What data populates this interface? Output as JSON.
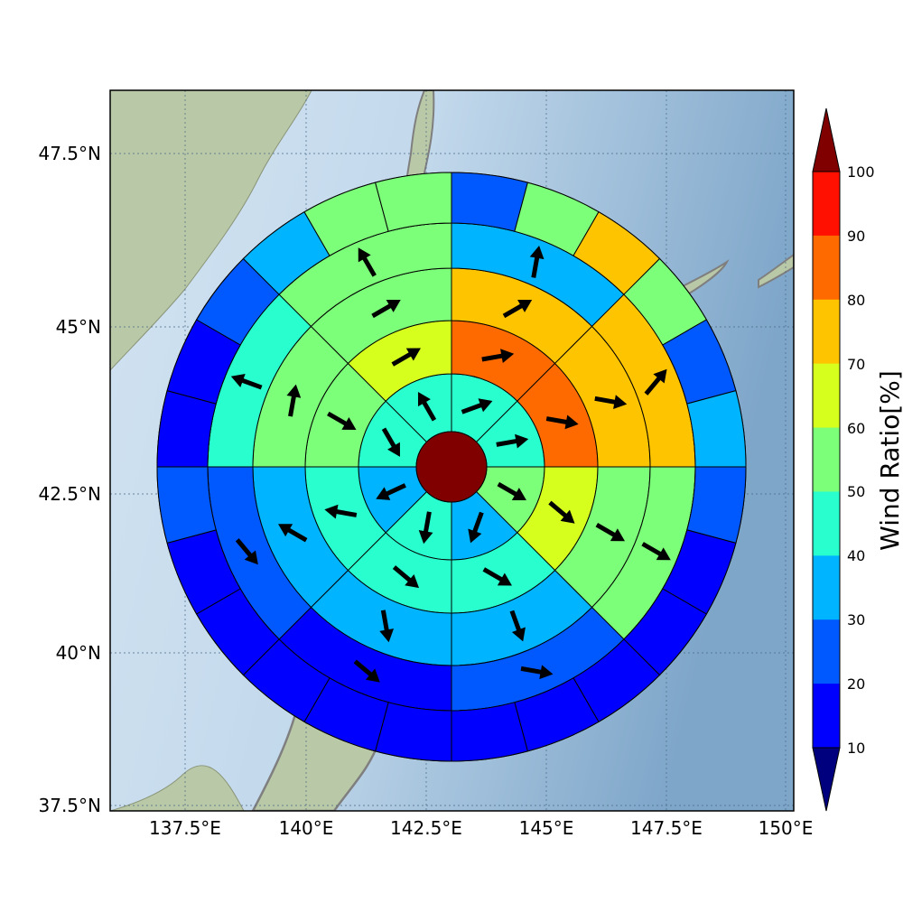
{
  "axes": {
    "lat_ticks": [
      "47.5°N",
      "45°N",
      "42.5°N",
      "40°N",
      "37.5°N"
    ],
    "lon_ticks": [
      "137.5°E",
      "140°E",
      "142.5°E",
      "145°E",
      "147.5°E",
      "150°E"
    ]
  },
  "colorbar": {
    "title": "Wind Ratio[%]",
    "labels": [
      "100",
      "90",
      "80",
      "70",
      "60",
      "50",
      "40",
      "30",
      "20",
      "10"
    ],
    "colors": [
      "#ff1000",
      "#ff6a00",
      "#ffc400",
      "#d6ff1d",
      "#7cff79",
      "#29ffce",
      "#00b4ff",
      "#0058ff",
      "#0000ff"
    ],
    "over_color": "#800000",
    "under_color": "#00007f"
  },
  "chart_data": {
    "type": "polar_sector_map",
    "center": {
      "lon": 143.0,
      "lat": 43.0
    },
    "center_color": "#800000",
    "sector_count": 8,
    "ring_count": 5,
    "ring_colors": [
      [
        "#29ffce",
        "#29ffce",
        "#7cff79",
        "#00b4ff",
        "#29ffce",
        "#00b4ff",
        "#29ffce",
        "#29ffce"
      ],
      [
        "#ff6a00",
        "#ff6a00",
        "#d6ff1d",
        "#29ffce",
        "#29ffce",
        "#29ffce",
        "#7cff79",
        "#d6ff1d"
      ],
      [
        "#ffc400",
        "#ffc400",
        "#7cff79",
        "#00b4ff",
        "#00b4ff",
        "#00b4ff",
        "#7cff79",
        "#7cff79"
      ],
      [
        "#00b4ff",
        "#ffc400",
        "#7cff79",
        "#0058ff",
        "#0000ff",
        "#0058ff",
        "#29ffce",
        "#7cff79"
      ],
      [
        "#0058ff",
        "#7cff79",
        "#0058ff",
        "#0000ff",
        "#0000ff",
        "#0000ff",
        "#0058ff",
        "#7cff79"
      ]
    ],
    "outer_ring_colors": [
      "#0058ff",
      "#7cff79",
      "#ffc400",
      "#7cff79",
      "#0058ff",
      "#00b4ff",
      "#0058ff",
      "#0000ff",
      "#0000ff",
      "#0000ff",
      "#0000ff",
      "#0000ff",
      "#0000ff",
      "#0000ff",
      "#0000ff",
      "#0000ff",
      "#0000ff",
      "#0058ff",
      "#0000ff",
      "#0000ff",
      "#0058ff",
      "#00b4ff",
      "#7cff79",
      "#7cff79"
    ],
    "arrow_directions_deg": [
      [
        70,
        80,
        120,
        200,
        190,
        245,
        150,
        330
      ],
      [
        80,
        100,
        130,
        120,
        130,
        280,
        120,
        60
      ],
      [
        60,
        100,
        120,
        160,
        170,
        300,
        10,
        60
      ],
      [
        10,
        40,
        120,
        100,
        130,
        140,
        290,
        330
      ]
    ]
  }
}
